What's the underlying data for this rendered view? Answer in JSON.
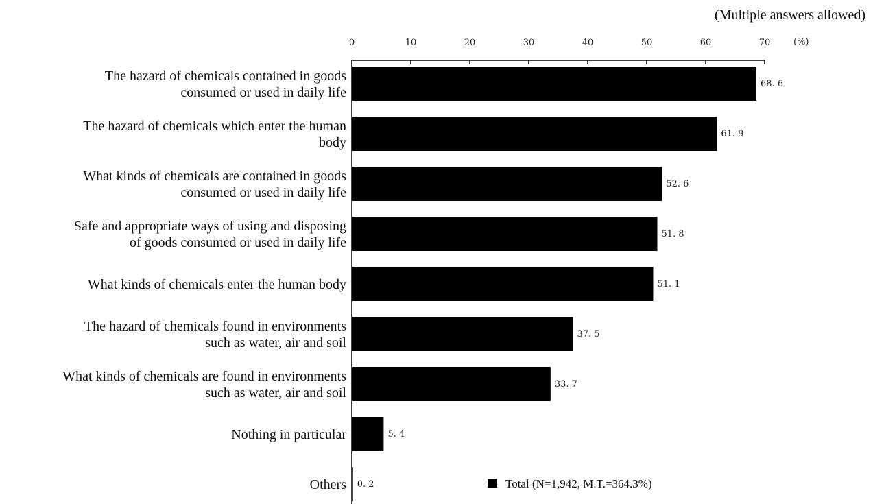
{
  "chart_data": {
    "type": "bar",
    "orientation": "horizontal",
    "note": "(Multiple answers allowed)",
    "unit": "(%)",
    "x_ticks": [
      "0",
      "10",
      "20",
      "30",
      "40",
      "50",
      "60",
      "70"
    ],
    "xlim": [
      0,
      70
    ],
    "categories": [
      [
        "The hazard of chemicals contained in goods",
        "consumed or used in daily life"
      ],
      [
        "The hazard of chemicals which enter the human",
        "body"
      ],
      [
        "What kinds of chemicals are contained in goods",
        "consumed or used in daily life"
      ],
      [
        "Safe and appropriate ways of using and disposing",
        "of goods consumed or used in daily life"
      ],
      [
        "What kinds of chemicals enter the human body"
      ],
      [
        "The hazard of chemicals found in environments",
        "such as water, air and soil"
      ],
      [
        "What kinds of chemicals are found in environments",
        "such as water, air and soil"
      ],
      [
        "Nothing in particular"
      ],
      [
        "Others"
      ]
    ],
    "values": [
      68.6,
      61.9,
      52.6,
      51.8,
      51.1,
      37.5,
      33.7,
      5.4,
      0.2
    ],
    "value_labels": [
      "68. 6",
      "61. 9",
      "52. 6",
      "51. 8",
      "51. 1",
      "37. 5",
      "33. 7",
      "5. 4",
      "0. 2"
    ],
    "legend": {
      "label": "Total (N=1,942, M.T.=364.3%)",
      "placement": "bottom-center"
    },
    "colors": {
      "bar": "#000000",
      "axis": "#000000",
      "text": "#111111"
    },
    "grid": false
  }
}
